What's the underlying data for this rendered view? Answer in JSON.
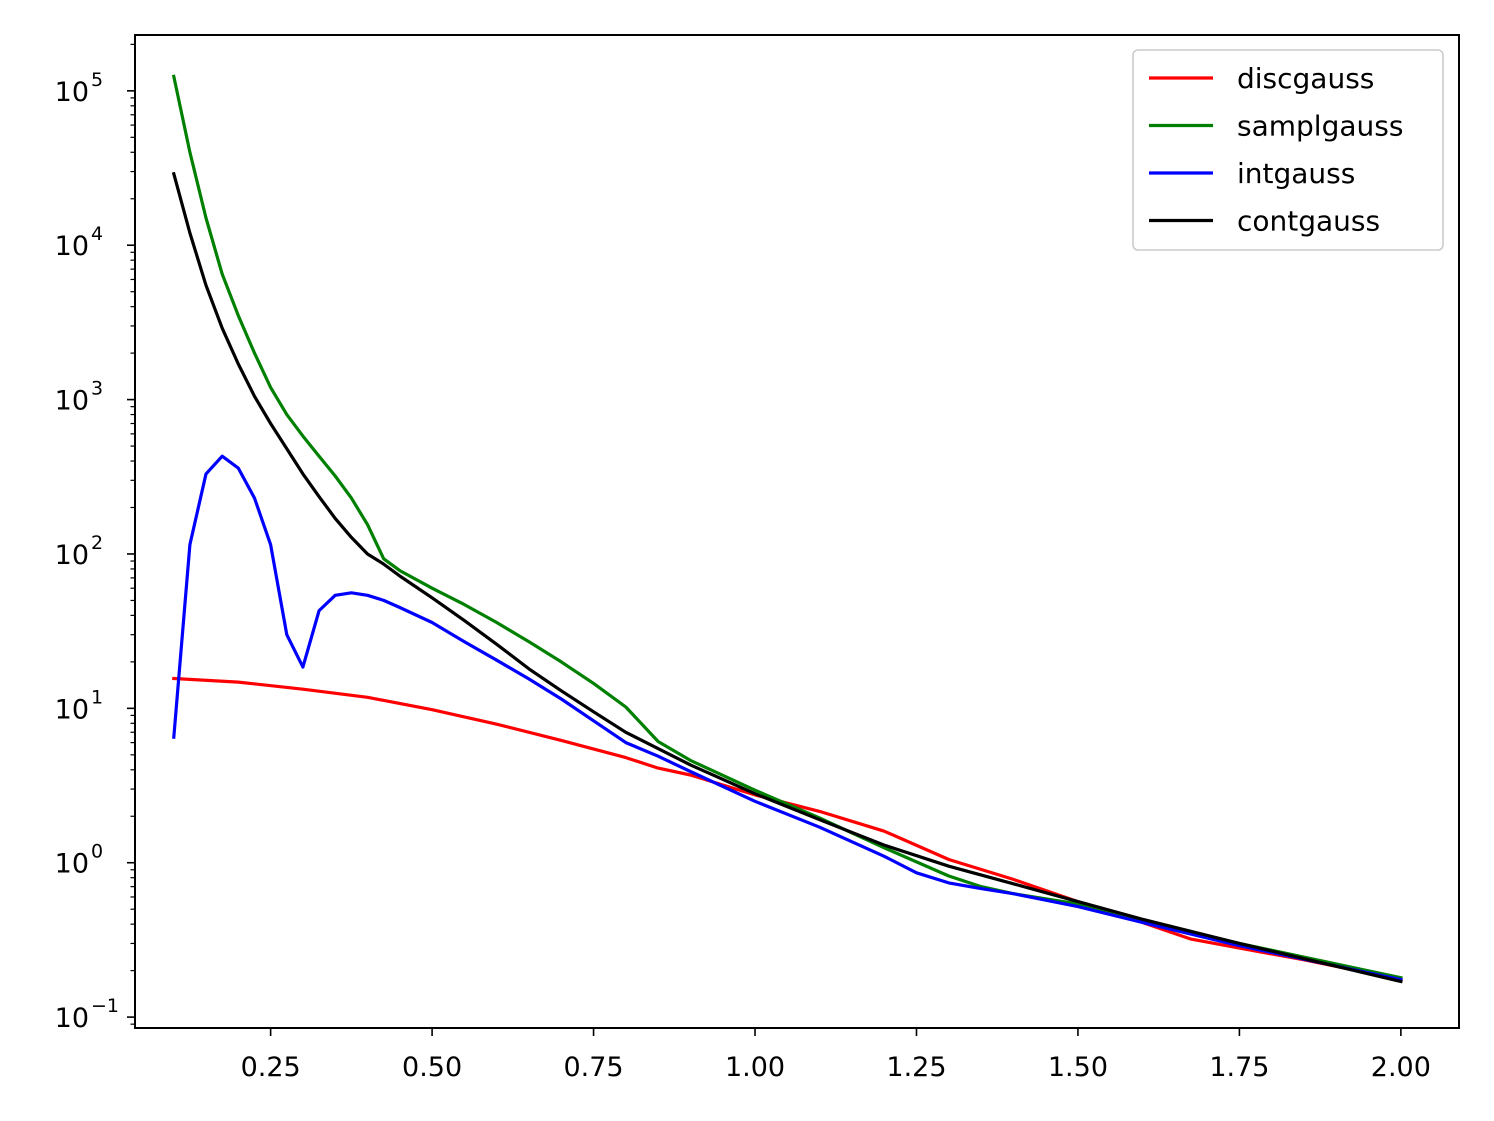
{
  "chart_data": {
    "type": "line",
    "title": "",
    "xlabel": "",
    "ylabel": "",
    "yscale": "log",
    "xlim": [
      0.04,
      2.09
    ],
    "ylim": [
      0.085,
      230000
    ],
    "grid": false,
    "legend_position": "top-right",
    "x_ticks": [
      {
        "value": 0.25,
        "label": "0.25"
      },
      {
        "value": 0.5,
        "label": "0.50"
      },
      {
        "value": 0.75,
        "label": "0.75"
      },
      {
        "value": 1.0,
        "label": "1.00"
      },
      {
        "value": 1.25,
        "label": "1.25"
      },
      {
        "value": 1.5,
        "label": "1.50"
      },
      {
        "value": 1.75,
        "label": "1.75"
      },
      {
        "value": 2.0,
        "label": "2.00"
      }
    ],
    "y_ticks": [
      {
        "value": 0.1,
        "base": "10",
        "exp": "−1"
      },
      {
        "value": 1,
        "base": "10",
        "exp": "0"
      },
      {
        "value": 10,
        "base": "10",
        "exp": "1"
      },
      {
        "value": 100,
        "base": "10",
        "exp": "2"
      },
      {
        "value": 1000,
        "base": "10",
        "exp": "3"
      },
      {
        "value": 10000,
        "base": "10",
        "exp": "4"
      },
      {
        "value": 100000,
        "base": "10",
        "exp": "5"
      }
    ],
    "series": [
      {
        "name": "discgauss",
        "color": "#ff0000",
        "points": [
          [
            0.1,
            15.6
          ],
          [
            0.2,
            14.8
          ],
          [
            0.3,
            13.3
          ],
          [
            0.4,
            11.8
          ],
          [
            0.5,
            9.8
          ],
          [
            0.6,
            7.9
          ],
          [
            0.7,
            6.2
          ],
          [
            0.8,
            4.8
          ],
          [
            0.85,
            4.1
          ],
          [
            0.9,
            3.7
          ],
          [
            1.0,
            2.75
          ],
          [
            1.1,
            2.15
          ],
          [
            1.2,
            1.6
          ],
          [
            1.3,
            1.05
          ],
          [
            1.4,
            0.78
          ],
          [
            1.5,
            0.56
          ],
          [
            1.6,
            0.41
          ],
          [
            1.675,
            0.32
          ],
          [
            1.75,
            0.28
          ],
          [
            1.85,
            0.235
          ],
          [
            2.0,
            0.175
          ]
        ]
      },
      {
        "name": "samplgauss",
        "color": "#008000",
        "points": [
          [
            0.1,
            124000
          ],
          [
            0.125,
            40000
          ],
          [
            0.15,
            15000
          ],
          [
            0.175,
            6500
          ],
          [
            0.2,
            3500
          ],
          [
            0.225,
            2000
          ],
          [
            0.25,
            1200
          ],
          [
            0.275,
            800
          ],
          [
            0.3,
            580
          ],
          [
            0.325,
            430
          ],
          [
            0.35,
            320
          ],
          [
            0.375,
            230
          ],
          [
            0.4,
            155
          ],
          [
            0.425,
            93
          ],
          [
            0.45,
            78
          ],
          [
            0.5,
            60
          ],
          [
            0.55,
            47
          ],
          [
            0.6,
            36
          ],
          [
            0.65,
            27
          ],
          [
            0.7,
            20
          ],
          [
            0.75,
            14.5
          ],
          [
            0.8,
            10.2
          ],
          [
            0.85,
            6.1
          ],
          [
            0.9,
            4.6
          ],
          [
            1.0,
            2.95
          ],
          [
            1.1,
            1.95
          ],
          [
            1.2,
            1.25
          ],
          [
            1.3,
            0.82
          ],
          [
            1.35,
            0.7
          ],
          [
            1.4,
            0.63
          ],
          [
            1.5,
            0.54
          ],
          [
            1.6,
            0.42
          ],
          [
            1.75,
            0.3
          ],
          [
            2.0,
            0.18
          ]
        ]
      },
      {
        "name": "intgauss",
        "color": "#0000ff",
        "points": [
          [
            0.1,
            6.5
          ],
          [
            0.125,
            115
          ],
          [
            0.15,
            330
          ],
          [
            0.175,
            430
          ],
          [
            0.2,
            360
          ],
          [
            0.225,
            230
          ],
          [
            0.25,
            115
          ],
          [
            0.275,
            30
          ],
          [
            0.3,
            18.5
          ],
          [
            0.325,
            43
          ],
          [
            0.35,
            54
          ],
          [
            0.375,
            56
          ],
          [
            0.4,
            54
          ],
          [
            0.425,
            50
          ],
          [
            0.45,
            45
          ],
          [
            0.5,
            36
          ],
          [
            0.55,
            27
          ],
          [
            0.6,
            20.5
          ],
          [
            0.65,
            15.5
          ],
          [
            0.7,
            11.5
          ],
          [
            0.75,
            8.3
          ],
          [
            0.8,
            6
          ],
          [
            0.85,
            4.9
          ],
          [
            0.9,
            3.9
          ],
          [
            1.0,
            2.5
          ],
          [
            1.1,
            1.7
          ],
          [
            1.2,
            1.1
          ],
          [
            1.25,
            0.86
          ],
          [
            1.3,
            0.74
          ],
          [
            1.35,
            0.68
          ],
          [
            1.4,
            0.63
          ],
          [
            1.5,
            0.52
          ],
          [
            1.6,
            0.41
          ],
          [
            1.75,
            0.29
          ],
          [
            2.0,
            0.175
          ]
        ]
      },
      {
        "name": "contgauss",
        "color": "#000000",
        "points": [
          [
            0.1,
            29000
          ],
          [
            0.125,
            12000
          ],
          [
            0.15,
            5500
          ],
          [
            0.175,
            2900
          ],
          [
            0.2,
            1700
          ],
          [
            0.225,
            1050
          ],
          [
            0.25,
            700
          ],
          [
            0.275,
            480
          ],
          [
            0.3,
            330
          ],
          [
            0.325,
            235
          ],
          [
            0.35,
            170
          ],
          [
            0.375,
            128
          ],
          [
            0.4,
            100
          ],
          [
            0.425,
            86
          ],
          [
            0.45,
            72
          ],
          [
            0.5,
            52
          ],
          [
            0.55,
            37
          ],
          [
            0.6,
            26
          ],
          [
            0.65,
            18
          ],
          [
            0.7,
            13
          ],
          [
            0.75,
            9.5
          ],
          [
            0.8,
            7
          ],
          [
            0.9,
            4.3
          ],
          [
            1.0,
            2.8
          ],
          [
            1.1,
            1.9
          ],
          [
            1.2,
            1.3
          ],
          [
            1.3,
            0.95
          ],
          [
            1.4,
            0.73
          ],
          [
            1.5,
            0.56
          ],
          [
            1.6,
            0.43
          ],
          [
            1.75,
            0.3
          ],
          [
            2.0,
            0.17
          ]
        ]
      }
    ]
  }
}
